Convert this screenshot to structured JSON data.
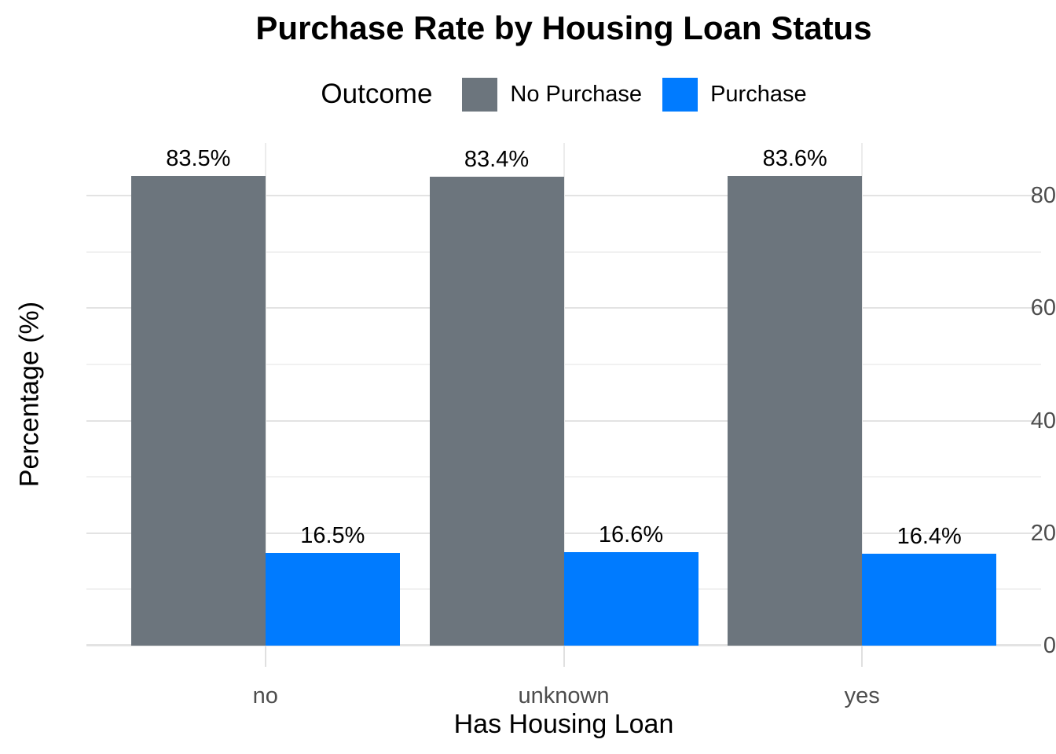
{
  "chart_data": {
    "type": "bar",
    "title": "Purchase Rate by Housing Loan Status",
    "xlabel": "Has Housing Loan",
    "ylabel": "Percentage (%)",
    "legend": {
      "title": "Outcome",
      "position": "top"
    },
    "categories": [
      "no",
      "unknown",
      "yes"
    ],
    "series": [
      {
        "name": "No Purchase",
        "color": "#6C757D",
        "values": [
          83.5,
          83.4,
          83.6
        ],
        "labels": [
          "83.5%",
          "83.4%",
          "83.6%"
        ]
      },
      {
        "name": "Purchase",
        "color": "#007BFF",
        "values": [
          16.5,
          16.6,
          16.4
        ],
        "labels": [
          "16.5%",
          "16.6%",
          "16.4%"
        ]
      }
    ],
    "yticks": [
      0,
      20,
      40,
      60,
      80
    ],
    "yticks_minor": [
      10,
      30,
      50,
      70
    ],
    "ylim": [
      0,
      89.4
    ],
    "grid": true,
    "colors": {
      "grid_major": "#E3E3E3",
      "grid_minor": "#F1F1F1",
      "grid_vertical": "#ECECEC",
      "tick_text": "#4D4D4D",
      "text": "#000000",
      "background": "#FFFFFF"
    }
  }
}
